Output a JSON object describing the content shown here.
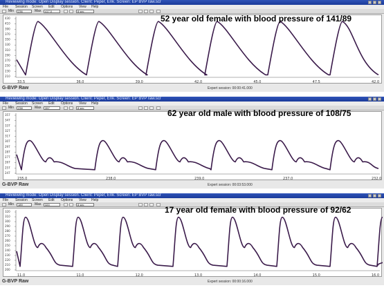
{
  "panels": [
    {
      "window_title": "Reviewing mode: Open Display session. Client: Peper, Erik. Screen: EP BVP raw.scr",
      "menu": [
        "File",
        "Session",
        "Screen",
        "Edit",
        "Options",
        "View",
        "Help"
      ],
      "toolbar": {
        "min_label": "Min",
        "min_value": "236",
        "max_label": "Max",
        "max_value": "417.0",
        "span_value": "8 sec"
      },
      "caption": "52 year old female with blood pressure of 141/89",
      "y_ticks": [
        "430",
        "410",
        "390",
        "370",
        "350",
        "330",
        "310",
        "290",
        "270",
        "250",
        "230",
        "210"
      ],
      "x_ticks": [
        "33.5",
        "36.0",
        "39.0",
        "42.0",
        "45.0",
        "47.5",
        "42.0"
      ],
      "source_label": "G-BVP Raw",
      "expert_session": "Expert session: 00:00:41.000"
    },
    {
      "window_title": "Reviewing mode: Open Display session. Client: Peper, Erik. Screen: EP BVP raw.scr",
      "menu": [
        "File",
        "Session",
        "Screen",
        "Edit",
        "Options",
        "View",
        "Help"
      ],
      "toolbar": {
        "min_label": "Min",
        "min_value": "238",
        "max_label": "Max",
        "max_value": "357",
        "span_value": "8 sec"
      },
      "caption": "62 year old male with blood pressure of 108/75",
      "y_ticks": [
        "357",
        "347",
        "337",
        "327",
        "317",
        "307",
        "297",
        "287",
        "277",
        "267",
        "257",
        "247"
      ],
      "x_ticks": [
        "235.0",
        "238.0",
        "239.0",
        "237.0",
        "232.0"
      ],
      "source_label": "G-BVP Raw",
      "expert_session": "Expert session: 00:03:53.000"
    },
    {
      "window_title": "Reviewing mode: Open Display session. Client: Peper, Erik. Screen: EP BVP raw.scr",
      "menu": [
        "File",
        "Session",
        "Screen",
        "Edit",
        "Options",
        "View",
        "Help"
      ],
      "toolbar": {
        "min_label": "Min",
        "min_value": "189",
        "max_label": "Max",
        "max_value": "320",
        "span_value": "8 sec"
      },
      "caption": "17 year old female with blood pressure of 92/62",
      "y_ticks": [
        "320",
        "310",
        "300",
        "290",
        "280",
        "270",
        "260",
        "250",
        "240",
        "230",
        "220",
        "210",
        "200"
      ],
      "x_ticks": [
        "11.0",
        "11.0",
        "12.0",
        "13.0",
        "14.0",
        "15.0",
        "16.0"
      ],
      "source_label": "G-BVP Raw",
      "expert_session": "Expert session: 00:00:16.000"
    }
  ],
  "colors": {
    "trace": "#3a1a4a",
    "titlebar": "#1a3a9a"
  }
}
